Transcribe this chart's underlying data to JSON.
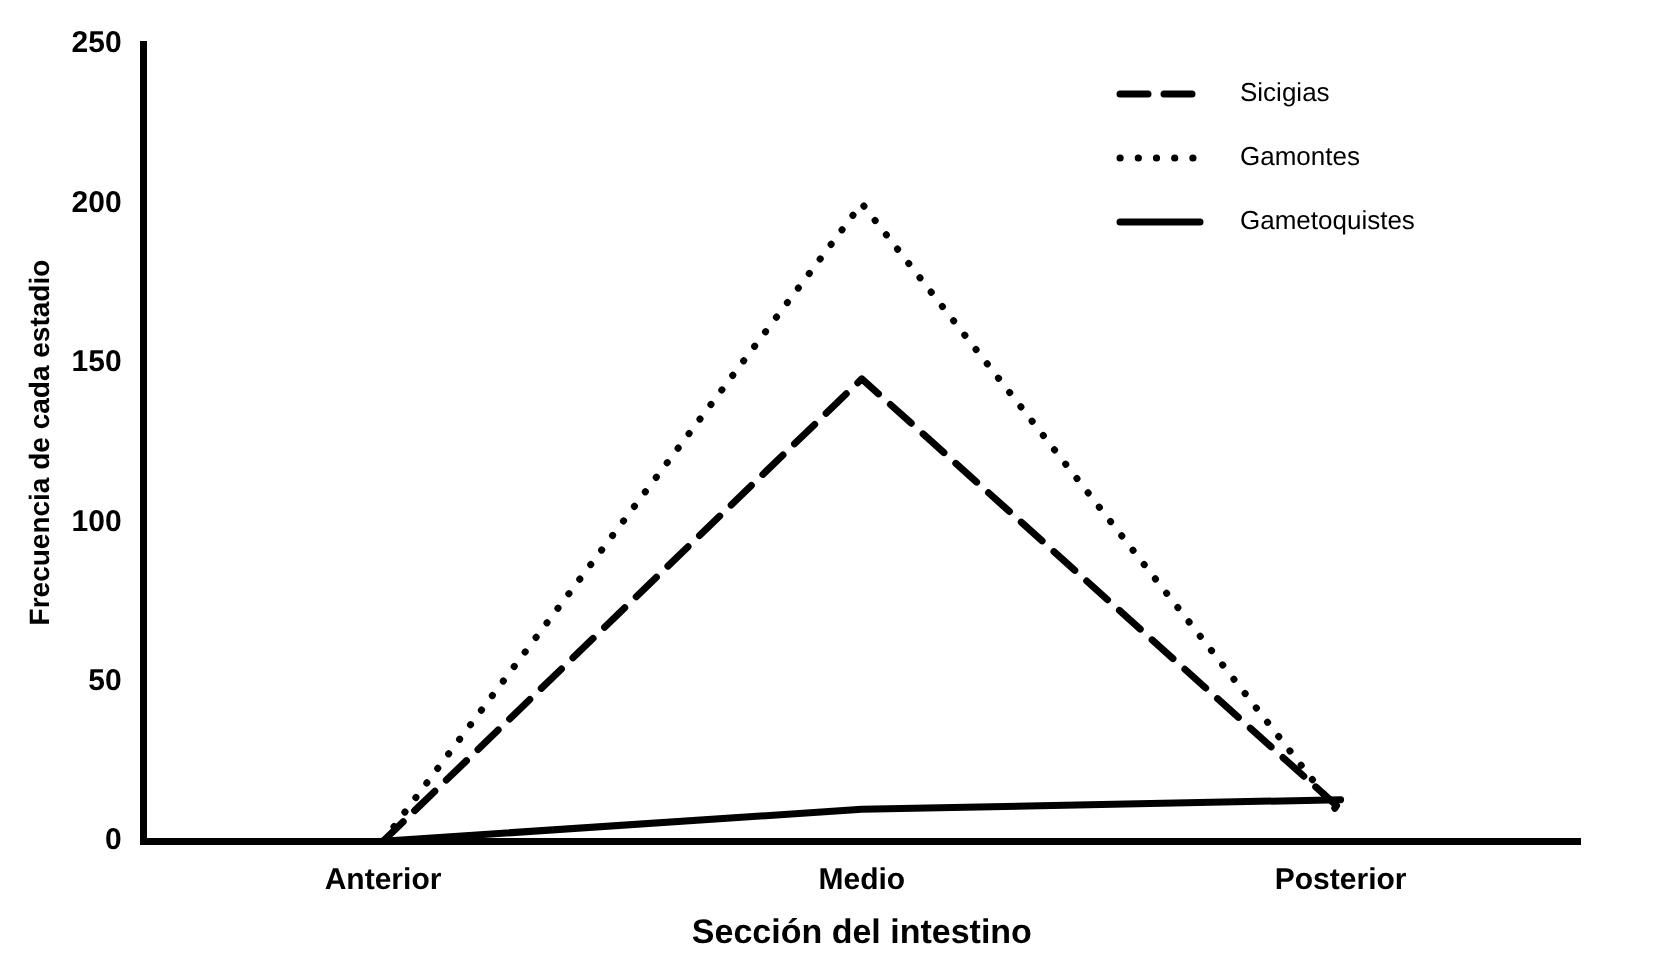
{
  "chart_data": {
    "type": "line",
    "xlabel": "Sección del intestino",
    "ylabel": "Frecuencia de cada estadio",
    "categories": [
      "Anterior",
      "Medio",
      "Posterior"
    ],
    "series": [
      {
        "name": "Sicigias",
        "color": "#000000",
        "values": [
          0,
          145,
          10
        ],
        "line_style": "dashed"
      },
      {
        "name": "Gamontes",
        "color": "#000000",
        "values": [
          0,
          200,
          8
        ],
        "line_style": "dotted"
      },
      {
        "name": "Gametoquistes",
        "color": "#000000",
        "values": [
          0,
          10,
          13
        ],
        "line_style": "solid"
      }
    ],
    "ylim": [
      0,
      250
    ],
    "yticks": [
      0,
      50,
      100,
      150,
      200,
      250
    ],
    "grid": false,
    "legend": "top right",
    "marker": "none"
  }
}
